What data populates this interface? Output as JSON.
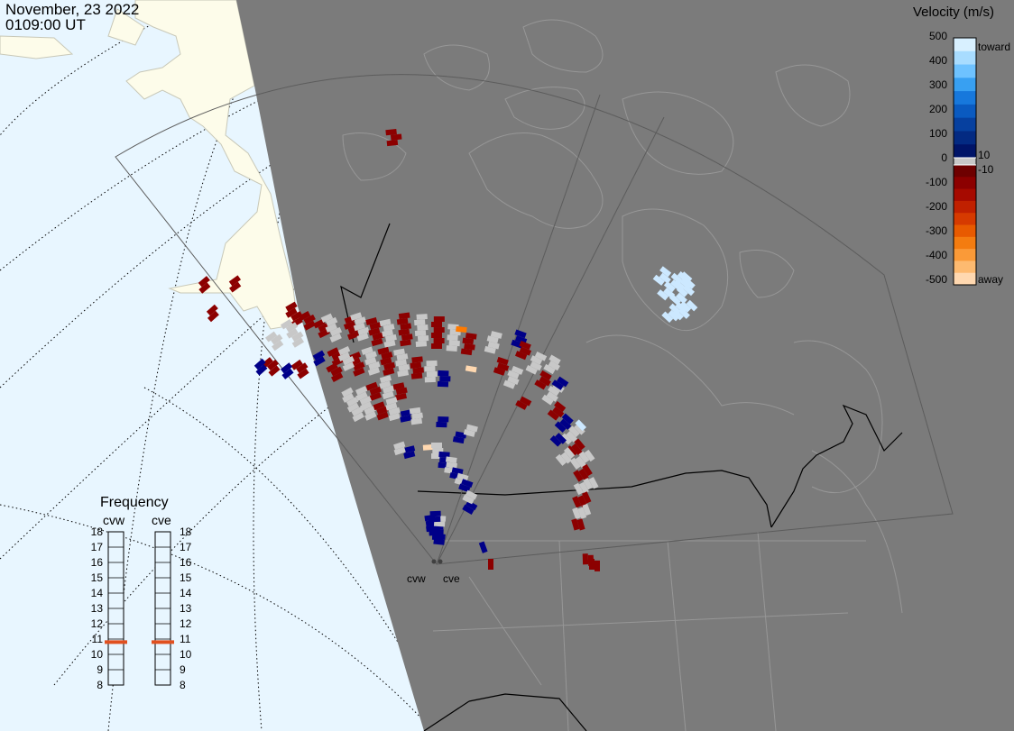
{
  "header": {
    "date": "November, 23 2022",
    "time": "0109:00 UT"
  },
  "colors": {
    "ocean": "#e8f6ff",
    "land_west": "#fdfcea",
    "night_shade": "#7b7b7b",
    "boundary_light": "#979797",
    "scatter_gray": "#c8c8c8",
    "dark_red": "#8c0000",
    "dark_blue": "#000088",
    "light_blue": "#cce8ff",
    "orange": "#ff7a00",
    "peach": "#ffd8b0",
    "freq_marker": "#e05020"
  },
  "colorbar": {
    "title": "Velocity (m/s)",
    "ticks": [
      "500",
      "400",
      "300",
      "200",
      "100",
      "0",
      "-100",
      "-200",
      "-300",
      "-400",
      "-500"
    ],
    "inner_labels": [
      "10",
      "-10"
    ],
    "end_labels": {
      "top": "toward",
      "bottom": "away"
    },
    "positive_colors": [
      "#d8f0ff",
      "#a8dcff",
      "#6ec2ff",
      "#38a0f2",
      "#1778dc",
      "#0a5ac0",
      "#06409f",
      "#032a82",
      "#001468"
    ],
    "negative_colors": [
      "#6e0000",
      "#8c0000",
      "#a60a00",
      "#c02000",
      "#d63a00",
      "#e85a00",
      "#f47c10",
      "#fa9a38",
      "#fdba70",
      "#ffd8b0"
    ]
  },
  "frequency": {
    "title": "Frequency",
    "radars": [
      "cvw",
      "cve"
    ],
    "scale": [
      "18",
      "17",
      "16",
      "15",
      "14",
      "13",
      "12",
      "11",
      "10",
      "9",
      "8"
    ],
    "cvw_mhz": 10.8,
    "cve_mhz": 10.8
  },
  "sites": [
    "cvw",
    "cve"
  ]
}
